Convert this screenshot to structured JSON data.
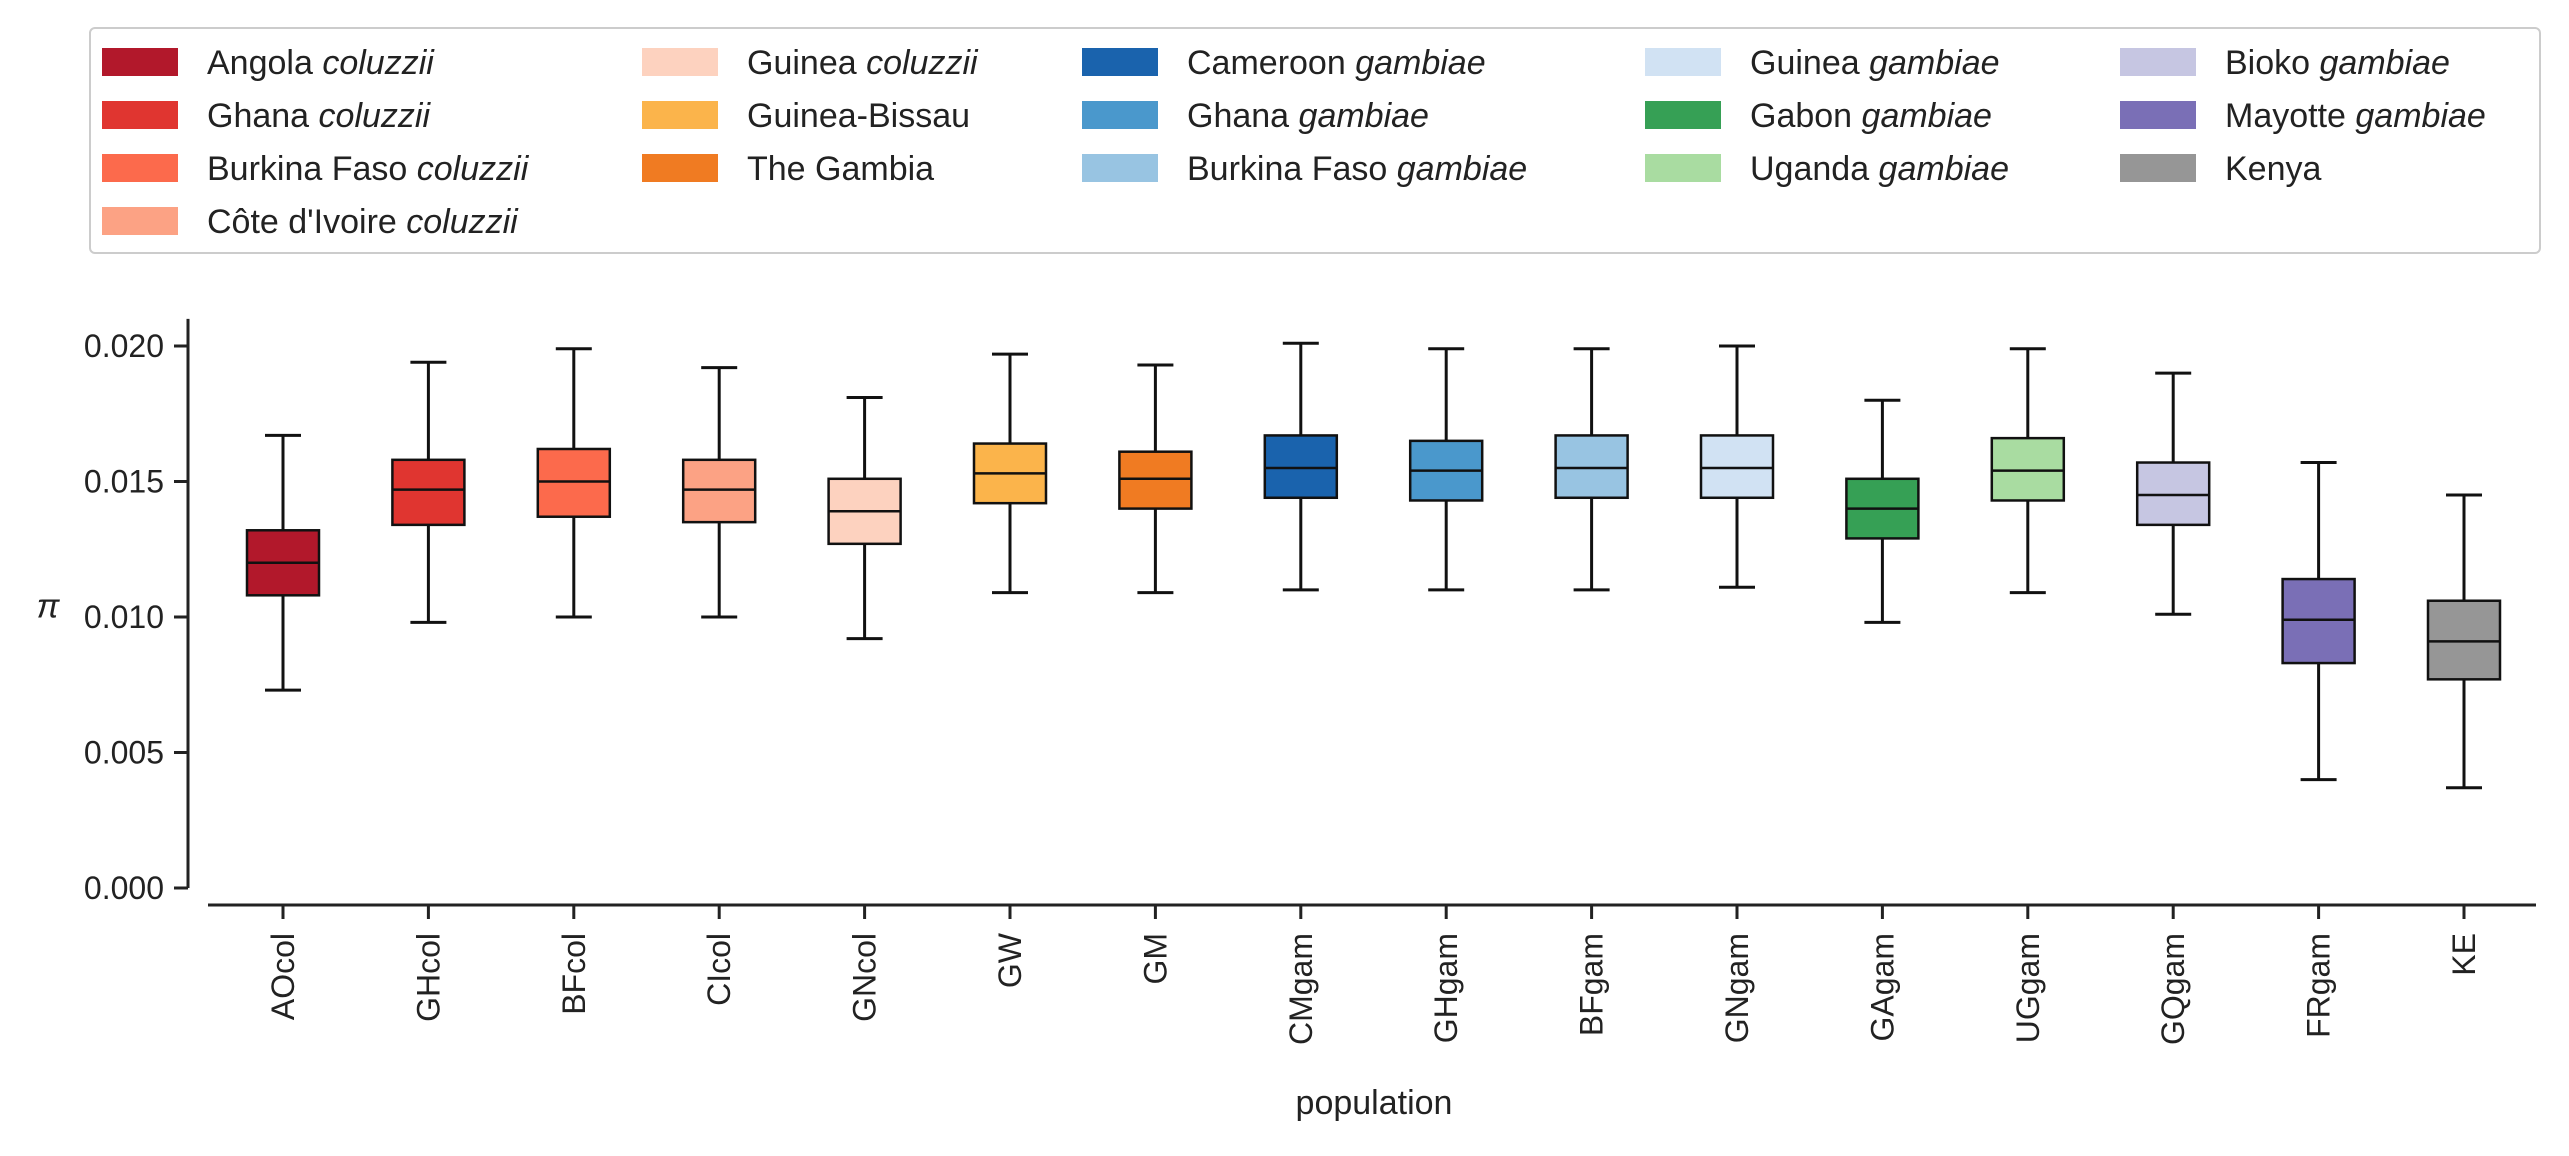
{
  "chart_data": {
    "type": "box",
    "xlabel": "population",
    "ylabel": "π",
    "ylim": [
      0,
      0.021
    ],
    "yticks": [
      "0.000",
      "0.005",
      "0.010",
      "0.015",
      "0.020"
    ],
    "ytick_values": [
      0,
      0.005,
      0.01,
      0.015,
      0.02
    ],
    "grid": false,
    "legend_position": "top",
    "legend": [
      {
        "name": "Angola",
        "italic": "coluzzii",
        "color": "#b2182b"
      },
      {
        "name": "Ghana",
        "italic": "coluzzii",
        "color": "#e03530"
      },
      {
        "name": "Burkina Faso",
        "italic": "coluzzii",
        "color": "#fc6a4c"
      },
      {
        "name": "Côte d'Ivoire",
        "italic": "coluzzii",
        "color": "#fca284"
      },
      {
        "name": "Guinea",
        "italic": "coluzzii",
        "color": "#fdd2bf"
      },
      {
        "name": "Guinea-Bissau",
        "italic": "",
        "color": "#fbb44b"
      },
      {
        "name": "The Gambia",
        "italic": "",
        "color": "#f07b22"
      },
      {
        "name": "Cameroon",
        "italic": "gambiae",
        "color": "#1a63ad"
      },
      {
        "name": "Ghana",
        "italic": "gambiae",
        "color": "#4a98cc"
      },
      {
        "name": "Burkina Faso",
        "italic": "gambiae",
        "color": "#98c4e2"
      },
      {
        "name": "Guinea",
        "italic": "gambiae",
        "color": "#d1e2f3"
      },
      {
        "name": "Gabon",
        "italic": "gambiae",
        "color": "#36a055"
      },
      {
        "name": "Uganda",
        "italic": "gambiae",
        "color": "#a9dca1"
      },
      {
        "name": "Bioko",
        "italic": "gambiae",
        "color": "#c6c6e2"
      },
      {
        "name": "Mayotte",
        "italic": "gambiae",
        "color": "#7a6fb6"
      },
      {
        "name": "Kenya",
        "italic": "",
        "color": "#969696"
      }
    ],
    "categories": [
      "AOcol",
      "GHcol",
      "BFcol",
      "CIcol",
      "GNcol",
      "GW",
      "GM",
      "CMgam",
      "GHgam",
      "BFgam",
      "GNgam",
      "GAgam",
      "UGgam",
      "GQgam",
      "FRgam",
      "KE"
    ],
    "boxes": [
      {
        "whislo": 0.0073,
        "q1": 0.0108,
        "med": 0.012,
        "q3": 0.0132,
        "whishi": 0.0167
      },
      {
        "whislo": 0.0098,
        "q1": 0.0134,
        "med": 0.0147,
        "q3": 0.0158,
        "whishi": 0.0194
      },
      {
        "whislo": 0.01,
        "q1": 0.0137,
        "med": 0.015,
        "q3": 0.0162,
        "whishi": 0.0199
      },
      {
        "whislo": 0.01,
        "q1": 0.0135,
        "med": 0.0147,
        "q3": 0.0158,
        "whishi": 0.0192
      },
      {
        "whislo": 0.0092,
        "q1": 0.0127,
        "med": 0.0139,
        "q3": 0.0151,
        "whishi": 0.0181
      },
      {
        "whislo": 0.0109,
        "q1": 0.0142,
        "med": 0.0153,
        "q3": 0.0164,
        "whishi": 0.0197
      },
      {
        "whislo": 0.0109,
        "q1": 0.014,
        "med": 0.0151,
        "q3": 0.0161,
        "whishi": 0.0193
      },
      {
        "whislo": 0.011,
        "q1": 0.0144,
        "med": 0.0155,
        "q3": 0.0167,
        "whishi": 0.0201
      },
      {
        "whislo": 0.011,
        "q1": 0.0143,
        "med": 0.0154,
        "q3": 0.0165,
        "whishi": 0.0199
      },
      {
        "whislo": 0.011,
        "q1": 0.0144,
        "med": 0.0155,
        "q3": 0.0167,
        "whishi": 0.0199
      },
      {
        "whislo": 0.0111,
        "q1": 0.0144,
        "med": 0.0155,
        "q3": 0.0167,
        "whishi": 0.02
      },
      {
        "whislo": 0.0098,
        "q1": 0.0129,
        "med": 0.014,
        "q3": 0.0151,
        "whishi": 0.018
      },
      {
        "whislo": 0.0109,
        "q1": 0.0143,
        "med": 0.0154,
        "q3": 0.0166,
        "whishi": 0.0199
      },
      {
        "whislo": 0.0101,
        "q1": 0.0134,
        "med": 0.0145,
        "q3": 0.0157,
        "whishi": 0.019
      },
      {
        "whislo": 0.004,
        "q1": 0.0083,
        "med": 0.0099,
        "q3": 0.0114,
        "whishi": 0.0157
      },
      {
        "whislo": 0.0037,
        "q1": 0.0077,
        "med": 0.0091,
        "q3": 0.0106,
        "whishi": 0.0145
      }
    ]
  }
}
